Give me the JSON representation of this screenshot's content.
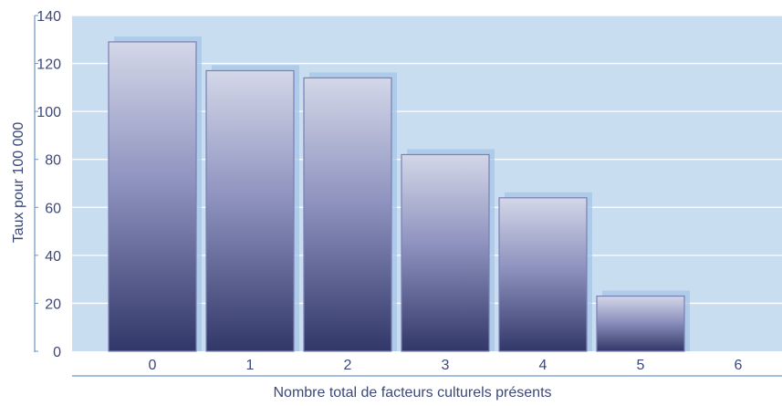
{
  "chart_data": {
    "type": "bar",
    "categories": [
      "0",
      "1",
      "2",
      "3",
      "4",
      "5",
      "6"
    ],
    "values": [
      129,
      117,
      114,
      82,
      64,
      23,
      0
    ],
    "xlabel": "Nombre total de facteurs culturels présents",
    "ylabel": "Taux pour 100 000",
    "ylim": [
      0,
      140
    ],
    "yticks": [
      0,
      20,
      40,
      60,
      80,
      100,
      120,
      140
    ],
    "grid": true,
    "colors": {
      "plot_background": "#c8ddf0",
      "gridline": "#ffffff",
      "axis": "#6a96c8",
      "bar_top": "#d3d7e8",
      "bar_bottom": "#313768",
      "bar_shadow": "#a6c5e8",
      "text": "#3c4878"
    }
  }
}
